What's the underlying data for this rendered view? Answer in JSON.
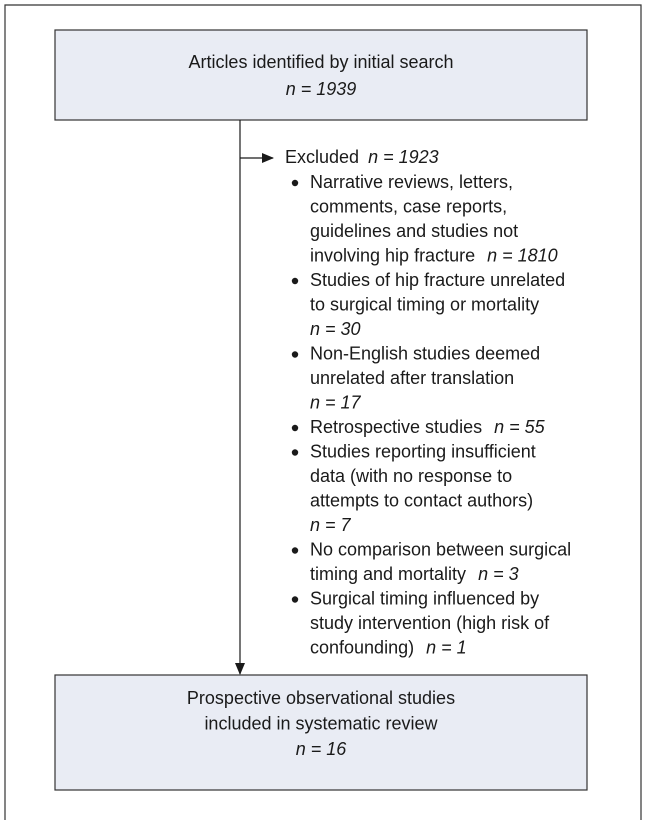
{
  "top_box": {
    "title": "Articles identified by initial search",
    "n": "n = 1939"
  },
  "excluded": {
    "label": "Excluded",
    "n": "n = 1923",
    "items": [
      {
        "lines": [
          "Narrative reviews, letters,",
          "comments, case reports,",
          "guidelines and studies not",
          "involving hip fracture"
        ],
        "n": "n = 1810"
      },
      {
        "lines": [
          "Studies of hip fracture unrelated",
          "to surgical timing or mortality"
        ],
        "n": "n = 30"
      },
      {
        "lines": [
          "Non-English studies deemed",
          "unrelated after translation"
        ],
        "n": "n = 17"
      },
      {
        "lines": [
          "Retrospective studies"
        ],
        "n": "n = 55"
      },
      {
        "lines": [
          "Studies reporting insufficient",
          "data (with no response to",
          "attempts to contact authors)"
        ],
        "n": "n = 7"
      },
      {
        "lines": [
          "No comparison between surgical",
          "timing and mortality"
        ],
        "n": "n = 3"
      },
      {
        "lines": [
          "Surgical timing influenced by",
          "study intervention (high risk of",
          "confounding)"
        ],
        "n": "n = 1"
      }
    ]
  },
  "bottom_box": {
    "lines": [
      "Prospective observational studies",
      "included in systematic review"
    ],
    "n": "n = 16"
  }
}
